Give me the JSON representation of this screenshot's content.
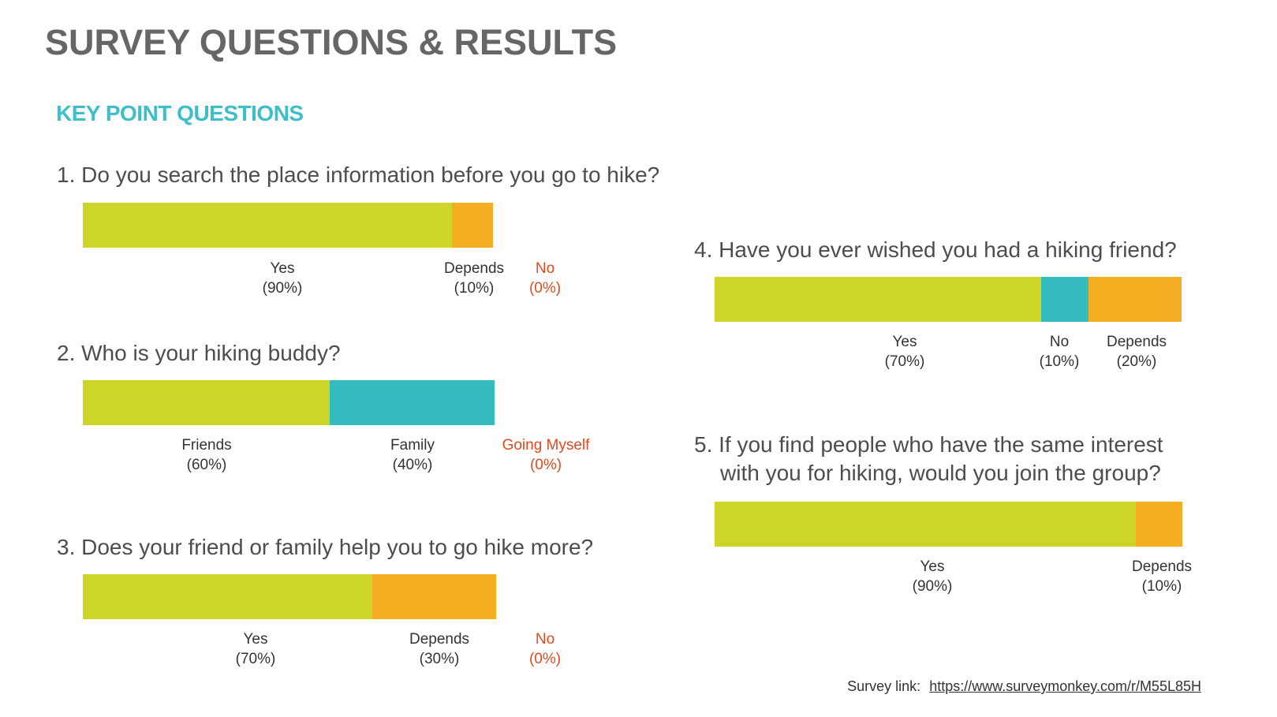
{
  "title": "SURVEY QUESTIONS & RESULTS",
  "section_heading": "KEY POINT QUESTIONS",
  "colors": {
    "yes": "#cdd627",
    "depends": "#f5ae22",
    "teal": "#34bcbe",
    "zero_label": "#e04a1e",
    "title": "#666666",
    "heading": "#3dbfca"
  },
  "chart_data": [
    {
      "type": "bar",
      "orientation": "horizontal-stacked",
      "title": "1. Do you search the place information before you go to hike?",
      "categories": [
        "Yes",
        "Depends",
        "No"
      ],
      "values": [
        90,
        10,
        0
      ],
      "value_labels": [
        "(90%)",
        "(10%)",
        "(0%)"
      ],
      "colors": [
        "#cdd627",
        "#f5ae22",
        "#e04a1e"
      ],
      "unit": "%"
    },
    {
      "type": "bar",
      "orientation": "horizontal-stacked",
      "title": "2. Who is your hiking buddy?",
      "categories": [
        "Friends",
        "Family",
        "Going Myself"
      ],
      "values": [
        60,
        40,
        0
      ],
      "value_labels": [
        "(60%)",
        "(40%)",
        "(0%)"
      ],
      "colors": [
        "#cdd627",
        "#34bcbe",
        "#e04a1e"
      ],
      "unit": "%"
    },
    {
      "type": "bar",
      "orientation": "horizontal-stacked",
      "title": "3. Does your friend or family help you to go hike more?",
      "categories": [
        "Yes",
        "Depends",
        "No"
      ],
      "values": [
        70,
        30,
        0
      ],
      "value_labels": [
        "(70%)",
        "(30%)",
        "(0%)"
      ],
      "colors": [
        "#cdd627",
        "#f5ae22",
        "#e04a1e"
      ],
      "unit": "%"
    },
    {
      "type": "bar",
      "orientation": "horizontal-stacked",
      "title": "4. Have you ever wished you had a hiking friend?",
      "categories": [
        "Yes",
        "No",
        "Depends"
      ],
      "values": [
        70,
        10,
        20
      ],
      "value_labels": [
        "(70%)",
        "(10%)",
        "(20%)"
      ],
      "colors": [
        "#cdd627",
        "#34bcbe",
        "#f5ae22"
      ],
      "unit": "%"
    },
    {
      "type": "bar",
      "orientation": "horizontal-stacked",
      "title_lines": [
        "5. If you find people who have the same interest",
        "with you for hiking, would you join the group?"
      ],
      "categories": [
        "Yes",
        "Depends"
      ],
      "values": [
        90,
        10
      ],
      "value_labels": [
        "(90%)",
        "(10%)"
      ],
      "colors": [
        "#cdd627",
        "#f5ae22"
      ],
      "unit": "%"
    }
  ],
  "footer": {
    "label": "Survey link:",
    "link_text": "https://www.surveymonkey.com/r/M55L85H"
  }
}
